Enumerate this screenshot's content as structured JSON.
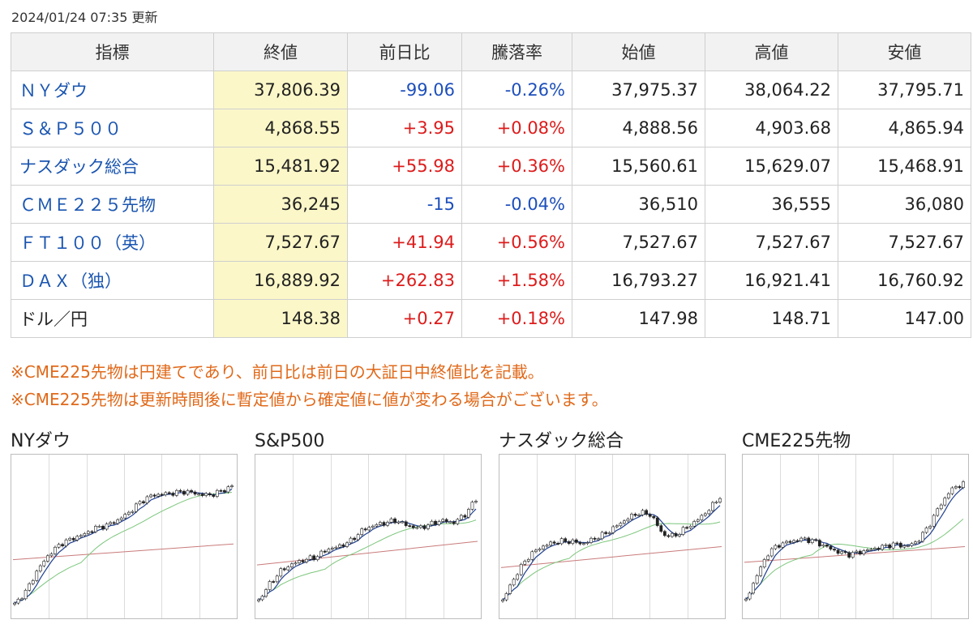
{
  "updated_text": "2024/01/24 07:35 更新",
  "table": {
    "headers": [
      "指標",
      "終値",
      "前日比",
      "騰落率",
      "始値",
      "高値",
      "安値"
    ],
    "rows": [
      {
        "name": "ＮＹダウ",
        "link": true,
        "close": "37,806.39",
        "change": "-99.06",
        "rate": "-0.26%",
        "open": "37,975.37",
        "high": "38,064.22",
        "low": "37,795.71",
        "dir": "down"
      },
      {
        "name": "Ｓ＆Ｐ５００",
        "link": true,
        "close": "4,868.55",
        "change": "+3.95",
        "rate": "+0.08%",
        "open": "4,888.56",
        "high": "4,903.68",
        "low": "4,865.94",
        "dir": "up"
      },
      {
        "name": "ナスダック総合",
        "link": true,
        "close": "15,481.92",
        "change": "+55.98",
        "rate": "+0.36%",
        "open": "15,560.61",
        "high": "15,629.07",
        "low": "15,468.91",
        "dir": "up"
      },
      {
        "name": "ＣＭＥ２２５先物",
        "link": true,
        "close": "36,245",
        "change": "-15",
        "rate": "-0.04%",
        "open": "36,510",
        "high": "36,555",
        "low": "36,080",
        "dir": "down"
      },
      {
        "name": "ＦＴ１００（英）",
        "link": true,
        "close": "7,527.67",
        "change": "+41.94",
        "rate": "+0.56%",
        "open": "7,527.67",
        "high": "7,527.67",
        "low": "7,527.67",
        "dir": "up"
      },
      {
        "name": "ＤＡＸ（独）",
        "link": true,
        "close": "16,889.92",
        "change": "+262.83",
        "rate": "+1.58%",
        "open": "16,793.27",
        "high": "16,921.41",
        "low": "16,760.92",
        "dir": "up"
      },
      {
        "name": "ドル／円",
        "link": false,
        "close": "148.38",
        "change": "+0.27",
        "rate": "+0.18%",
        "open": "147.98",
        "high": "148.71",
        "low": "147.00",
        "dir": "up"
      }
    ]
  },
  "notes": [
    "※CME225先物は円建てであり、前日比は前日の大証日中終値比を記載。",
    "※CME225先物は更新時間後に暫定値から確定値に値が変わる場合がございます。"
  ],
  "charts": [
    {
      "title": "NYダウ"
    },
    {
      "title": "S&P500"
    },
    {
      "title": "ナスダック総合"
    },
    {
      "title": "CME225先物"
    }
  ],
  "colors": {
    "up": "#dd1b1b",
    "down": "#1d4fbb",
    "note": "#e0691a",
    "link": "#1a55b0",
    "close_bg": "#fbf7c8",
    "ma_short": "#1f3f8f",
    "ma_mid": "#7cc67c",
    "ma_long": "#c97a7a"
  }
}
